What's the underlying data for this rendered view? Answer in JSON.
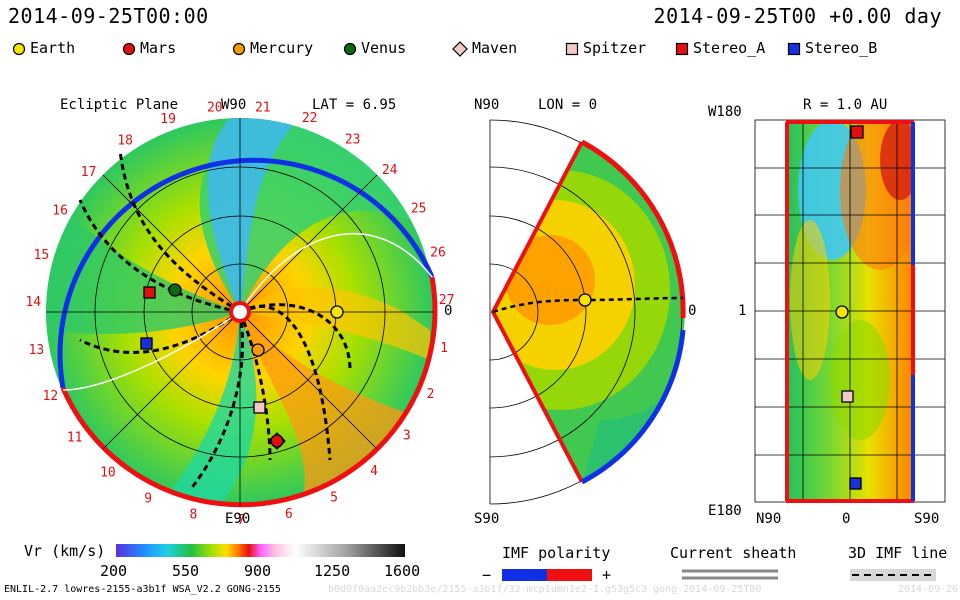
{
  "header": {
    "left_time": "2014-09-25T00:00",
    "right_time": "2014-09-25T00 +0.00 day"
  },
  "legend": [
    {
      "label": "Earth",
      "color": "#f5e400",
      "shape": "circle"
    },
    {
      "label": "Mars",
      "color": "#e01010",
      "shape": "circle"
    },
    {
      "label": "Mercury",
      "color": "#f59a00",
      "shape": "circle"
    },
    {
      "label": "Venus",
      "color": "#0a6a12",
      "shape": "circle"
    },
    {
      "label": "Maven",
      "color": "#f5c8c8",
      "shape": "diamond"
    },
    {
      "label": "Spitzer",
      "color": "#f5c8c8",
      "shape": "square"
    },
    {
      "label": "Stereo_A",
      "color": "#e01010",
      "shape": "square"
    },
    {
      "label": "Stereo_B",
      "color": "#1a30e0",
      "shape": "square"
    }
  ],
  "ecliptic": {
    "title": "Ecliptic Plane",
    "top_label": "W90",
    "bottom_label": "E90",
    "lat_label": "LAT = 6.95",
    "zero_label": "0",
    "sectors": [
      "20",
      "21",
      "22",
      "23",
      "24",
      "25",
      "26",
      "27",
      "1",
      "2",
      "3",
      "4",
      "5",
      "6",
      "7",
      "8",
      "9",
      "10",
      "11",
      "12",
      "13",
      "14",
      "15",
      "16",
      "17",
      "18",
      "19"
    ]
  },
  "meridional": {
    "top_label": "N90",
    "bottom_label": "S90",
    "lon_label": "LON = 0",
    "zero_label": "0"
  },
  "r_panel": {
    "left_top": "W180",
    "left_mid": "1",
    "left_bottom": "E180",
    "title": "R = 1.0 AU",
    "x_left": "N90",
    "x_mid": "0",
    "x_right": "S90"
  },
  "colorbar": {
    "label": "Vr (km/s)",
    "ticks": [
      "200",
      "550",
      "900",
      "1250",
      "1600"
    ]
  },
  "imf": {
    "title": "IMF polarity",
    "minus": "−",
    "plus": "+",
    "minus_color": "#1030e8",
    "plus_color": "#ee1010"
  },
  "current_sheath": {
    "title": "Current sheath"
  },
  "imf_line": {
    "title": "3D IMF line"
  },
  "footer": {
    "left": "ENLIL-2.7 lowres-2155-a3b1f WSA_V2.2 GONG-2155",
    "center": "b0d0f0aa2ec9b2bb3e/2155-a3b1f/32-mcp1umn1e2-1.g53g5c3 gong-2014-09-25T00",
    "right": "2014-09-26"
  }
}
